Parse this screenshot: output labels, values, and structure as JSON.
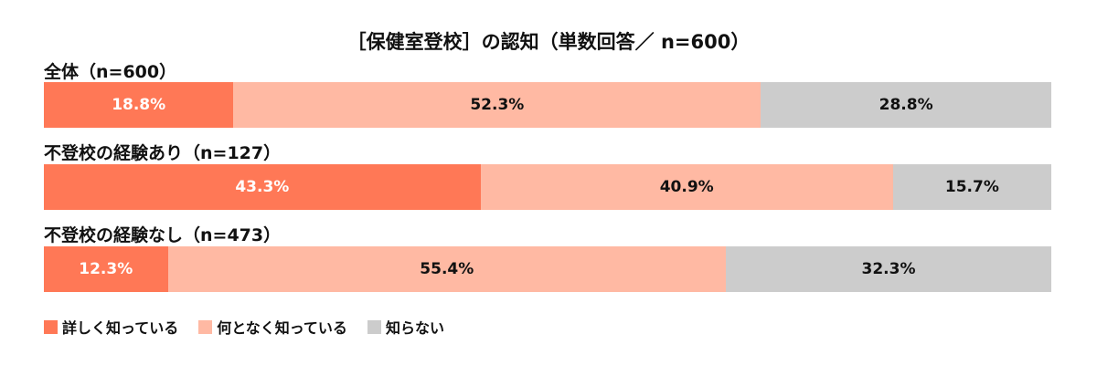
{
  "chart_data": {
    "type": "bar",
    "orientation": "horizontal-stacked-100",
    "title": "［保健室登校］の認知（単数回答／ n=600）",
    "categories": [
      "全体（n=600）",
      "不登校の経験あり（n=127）",
      "不登校の経験なし（n=473）"
    ],
    "series": [
      {
        "name": "詳しく知っている",
        "color": "#FF7856",
        "values": [
          18.8,
          43.3,
          12.3
        ],
        "labels": [
          "18.8%",
          "43.3%",
          "12.3%"
        ]
      },
      {
        "name": "何となく知っている",
        "color": "#FFB9A3",
        "values": [
          52.3,
          40.9,
          55.4
        ],
        "labels": [
          "52.3%",
          "40.9%",
          "55.4%"
        ]
      },
      {
        "name": "知らない",
        "color": "#CCCCCC",
        "values": [
          28.8,
          15.7,
          32.3
        ],
        "labels": [
          "28.8%",
          "15.7%",
          "32.3%"
        ]
      }
    ],
    "unit": "%",
    "legend_position": "bottom-left",
    "grid": false
  }
}
